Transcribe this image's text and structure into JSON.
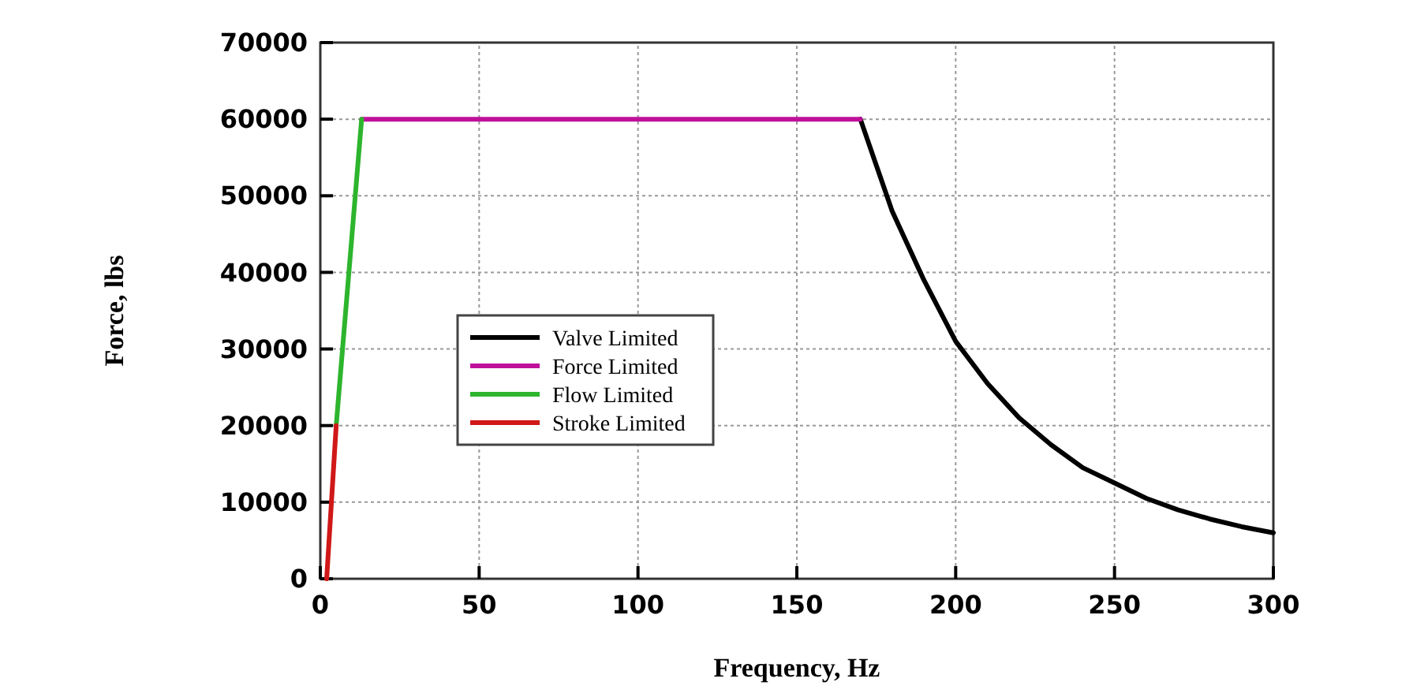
{
  "chart_data": {
    "type": "line",
    "xlabel": "Frequency, Hz",
    "ylabel": "Force, lbs",
    "xlim": [
      0,
      300
    ],
    "ylim": [
      0,
      70000
    ],
    "xticks": [
      0,
      50,
      100,
      150,
      200,
      250,
      300
    ],
    "yticks": [
      0,
      10000,
      20000,
      30000,
      40000,
      50000,
      60000,
      70000
    ],
    "grid": true,
    "legend": "left",
    "marker": "none",
    "line_style": "solid",
    "series": [
      {
        "name": "Valve Limited",
        "color": "#000000",
        "x": [
          170,
          175,
          180,
          190,
          200,
          210,
          220,
          230,
          240,
          250,
          260,
          270,
          280,
          290,
          300
        ],
        "values": [
          60000,
          54000,
          48000,
          39000,
          31000,
          25500,
          21000,
          17500,
          14500,
          12500,
          10500,
          9000,
          7800,
          6800,
          6000
        ]
      },
      {
        "name": "Force Limited",
        "color": "#c0109a",
        "x": [
          13,
          170
        ],
        "values": [
          60000,
          60000
        ]
      },
      {
        "name": "Flow Limited",
        "color": "#2db52d",
        "x": [
          5,
          13
        ],
        "values": [
          20000,
          60000
        ]
      },
      {
        "name": "Stroke Limited",
        "color": "#d01818",
        "x": [
          2,
          5
        ],
        "values": [
          0,
          20000
        ]
      }
    ]
  }
}
